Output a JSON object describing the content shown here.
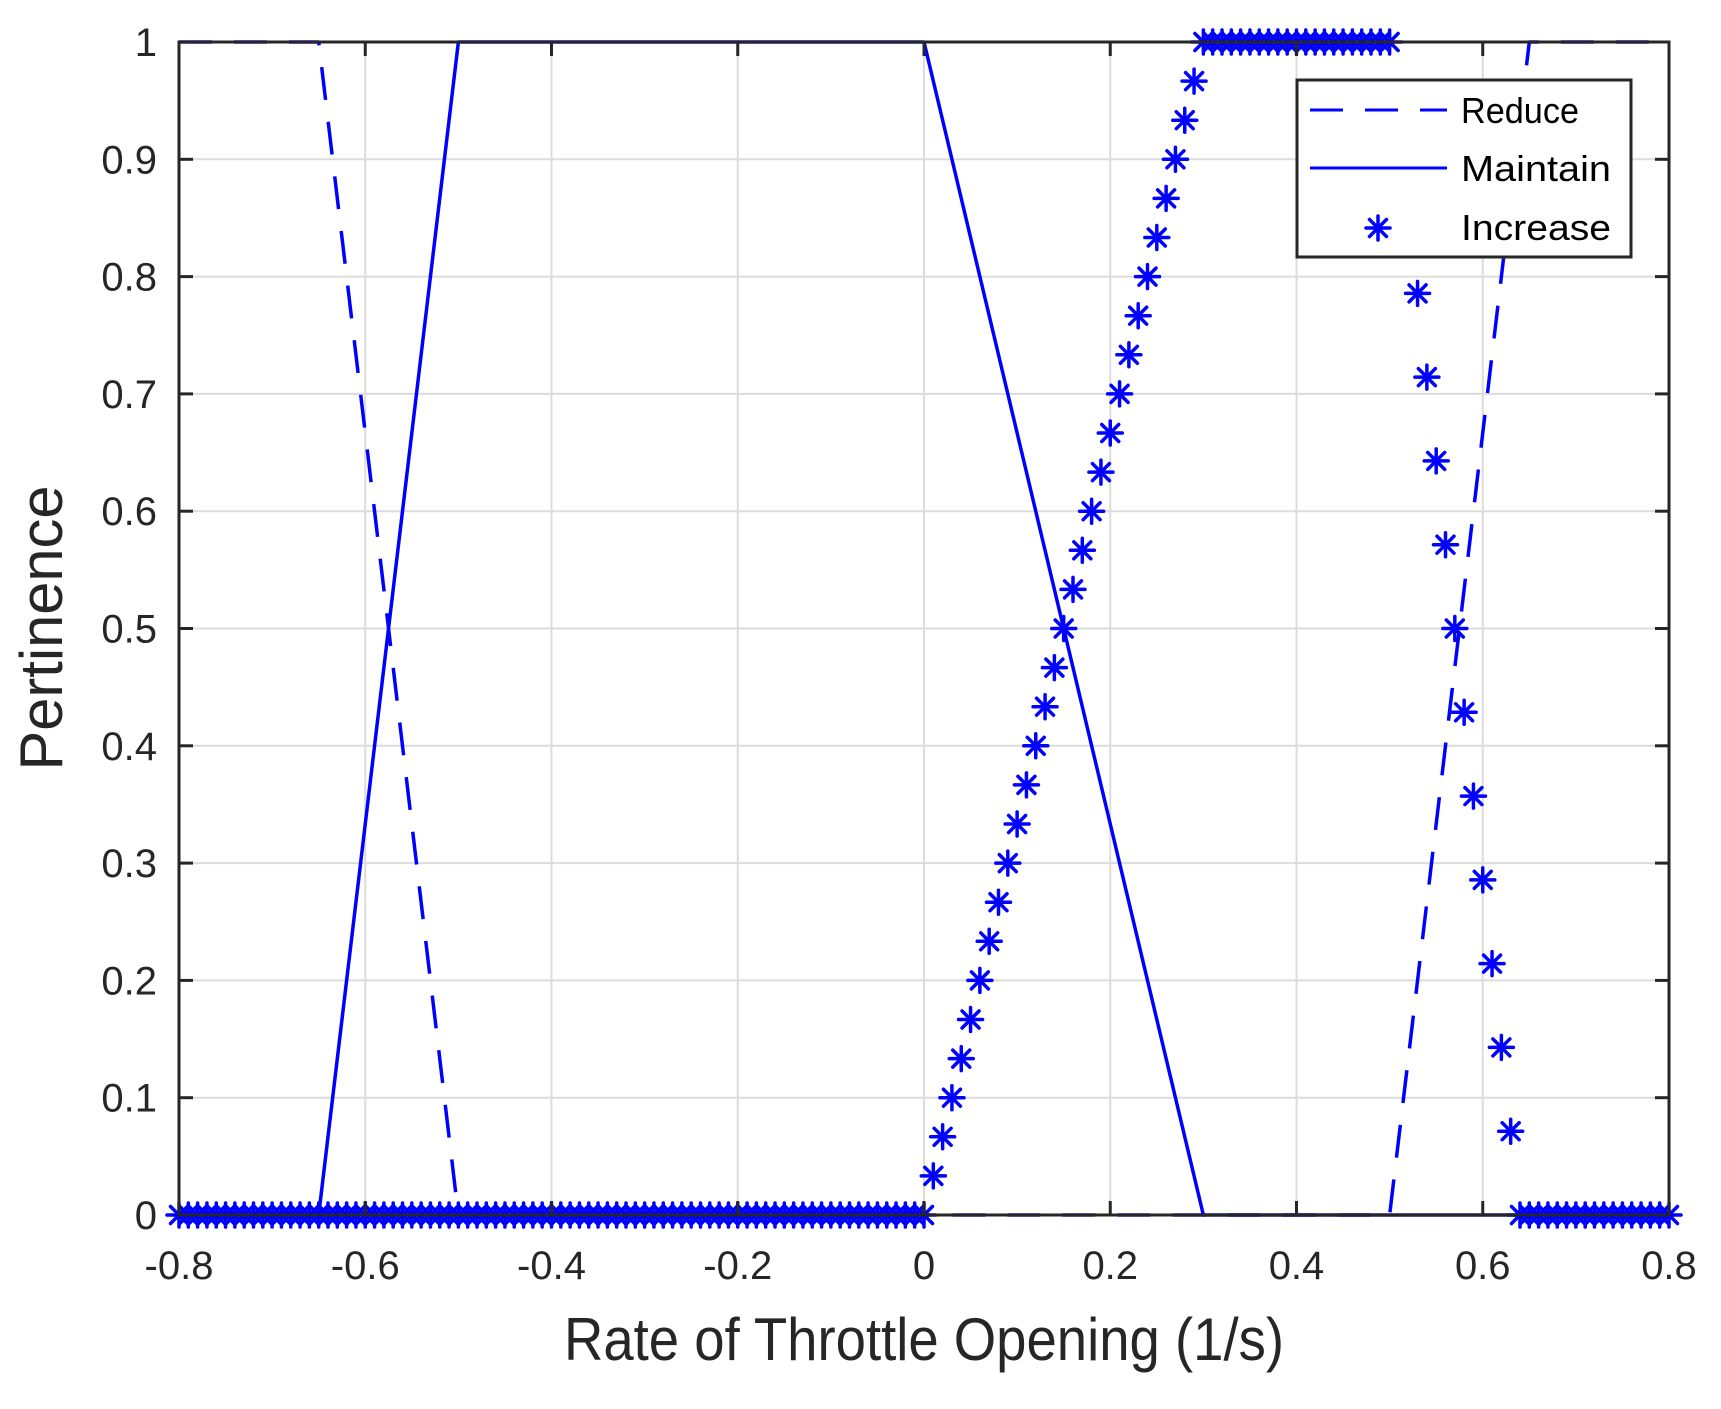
{
  "chart_data": {
    "type": "line",
    "title": "",
    "xlabel": "Rate of Throttle Opening (1/s)",
    "ylabel": "Pertinence",
    "xlim": [
      -0.8,
      0.8
    ],
    "ylim": [
      0,
      1
    ],
    "xticks": [
      -0.8,
      -0.6,
      -0.4,
      -0.2,
      0,
      0.2,
      0.4,
      0.6,
      0.8
    ],
    "xtick_labels": [
      "-0.8",
      "-0.6",
      "-0.4",
      "-0.2",
      "0",
      "0.2",
      "0.4",
      "0.6",
      "0.8"
    ],
    "yticks": [
      0,
      0.1,
      0.2,
      0.3,
      0.4,
      0.5,
      0.6,
      0.7,
      0.8,
      0.9,
      1
    ],
    "ytick_labels": [
      "0",
      "0.1",
      "0.2",
      "0.3",
      "0.4",
      "0.5",
      "0.6",
      "0.7",
      "0.8",
      "0.9",
      "1"
    ],
    "grid": true,
    "legend_position": "upper right",
    "series": [
      {
        "name": "Reduce",
        "style": "dashed",
        "color": "#0000ff",
        "x": [
          -0.8,
          -0.65,
          -0.5,
          0.5,
          0.65,
          0.8
        ],
        "y": [
          1,
          1,
          0,
          0,
          1,
          1
        ]
      },
      {
        "name": "Maintain",
        "style": "solid",
        "color": "#0000ff",
        "x": [
          -0.8,
          -0.65,
          -0.5,
          0,
          0.3,
          0.8
        ],
        "y": [
          0,
          0,
          1,
          1,
          0,
          0
        ]
      },
      {
        "name": "Increase",
        "style": "markers-asterisk",
        "color": "#0000ff",
        "sample_step": 0.01,
        "breakpoints_x": [
          -0.8,
          0,
          0.3,
          0.5,
          0.64,
          0.8
        ],
        "breakpoints_y": [
          0,
          0,
          1,
          1,
          0,
          0
        ]
      }
    ]
  },
  "legend": {
    "items": [
      {
        "label": "Reduce"
      },
      {
        "label": "Maintain"
      },
      {
        "label": "Increase"
      }
    ]
  }
}
